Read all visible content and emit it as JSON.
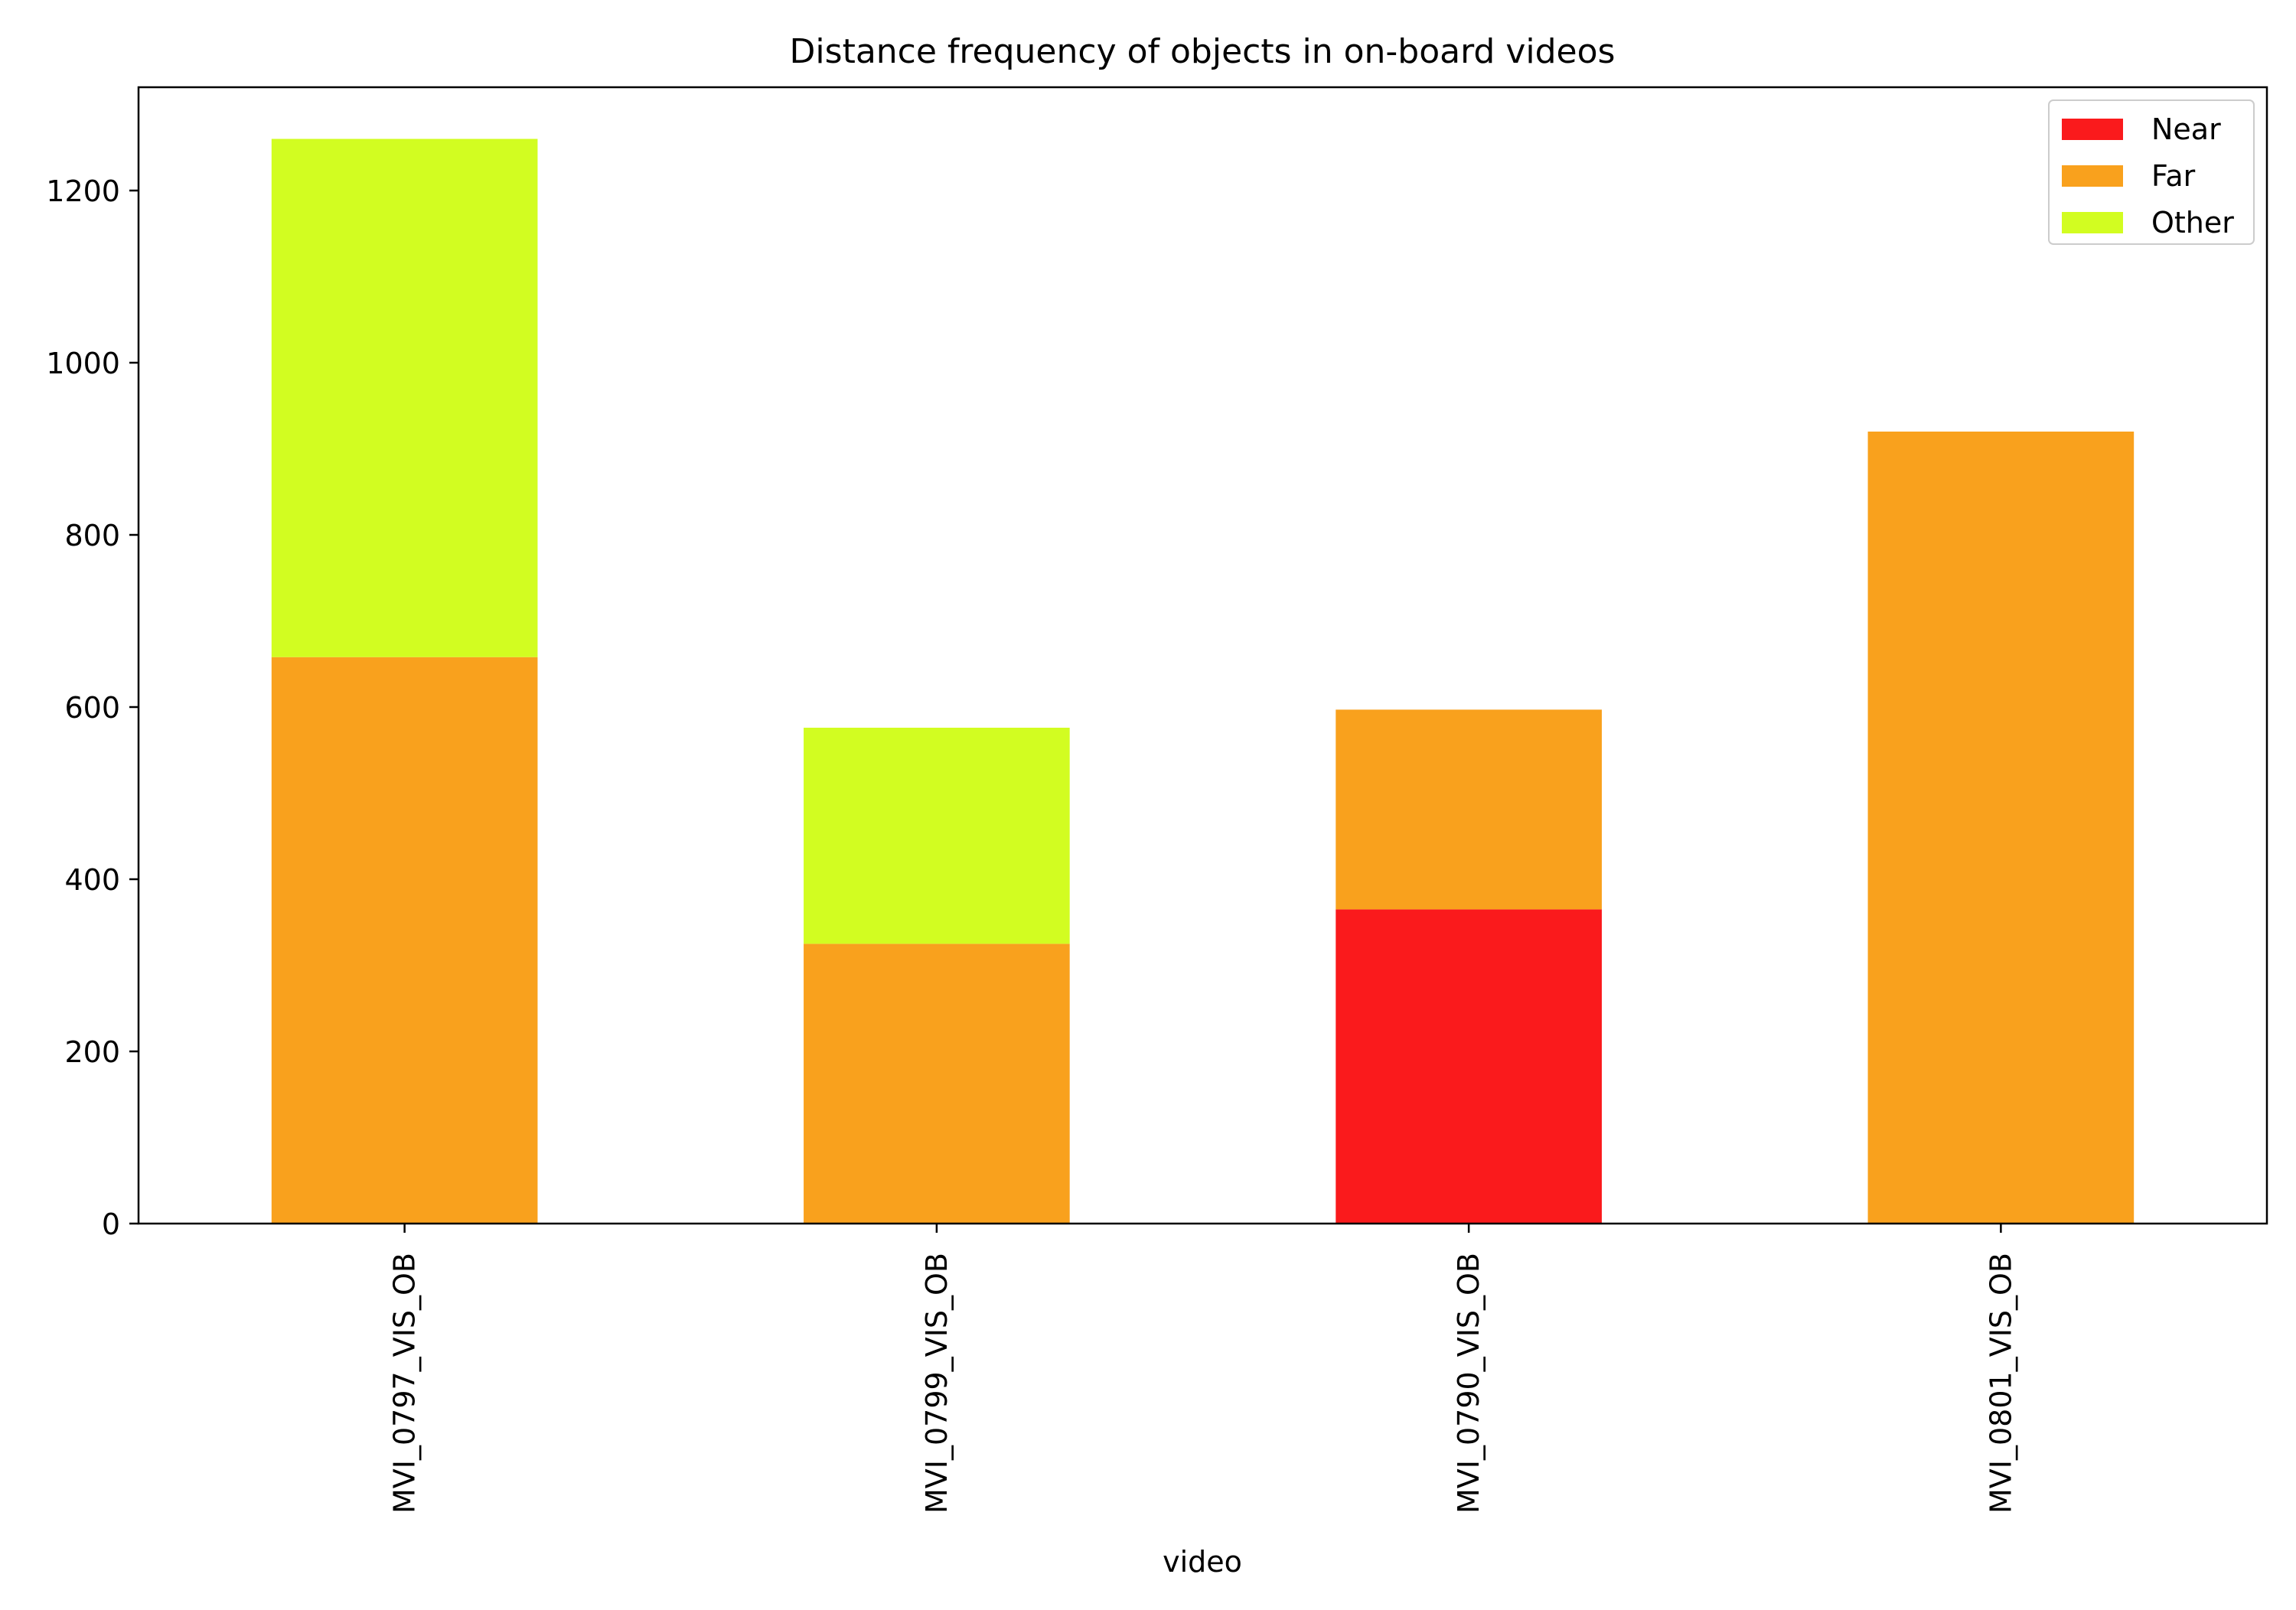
{
  "chart_data": {
    "type": "bar",
    "stacked": true,
    "title": "Distance frequency of objects in on-board videos",
    "xlabel": "video",
    "ylabel": "",
    "ylim": [
      0,
      1320
    ],
    "yticks": [
      0,
      200,
      400,
      600,
      800,
      1000,
      1200
    ],
    "categories": [
      "MVI_0797_VIS_OB",
      "MVI_0799_VIS_OB",
      "MVI_0790_VIS_OB",
      "MVI_0801_VIS_OB"
    ],
    "series": [
      {
        "name": "Near",
        "color": "#fa1a1c",
        "values": [
          0,
          0,
          365,
          0
        ]
      },
      {
        "name": "Far",
        "color": "#f9a11d",
        "values": [
          658,
          325,
          232,
          920
        ]
      },
      {
        "name": "Other",
        "color": "#d2fd21",
        "values": [
          602,
          251,
          0,
          0
        ]
      }
    ],
    "legend": {
      "position": "top-right"
    },
    "grid": false
  }
}
